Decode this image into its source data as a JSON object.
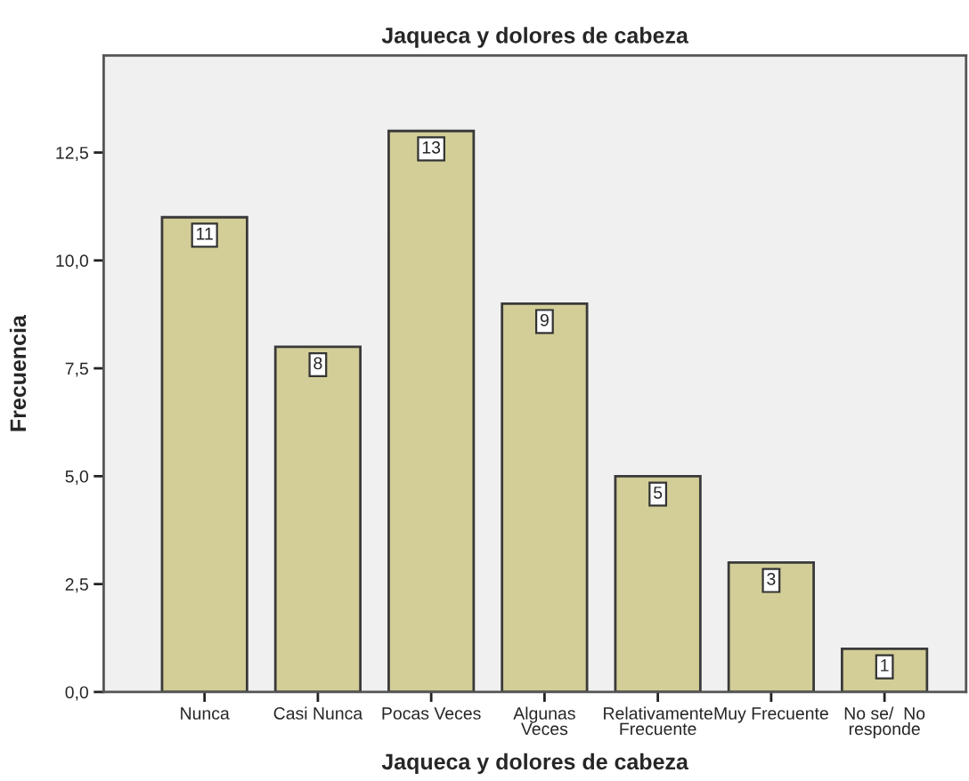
{
  "chart_data": {
    "type": "bar",
    "title": "Jaqueca y dolores de cabeza",
    "xlabel": "Jaqueca y dolores de cabeza",
    "ylabel": "Frecuencia",
    "categories": [
      "Nunca",
      "Casi Nunca",
      "Pocas Veces",
      "Algunas\nVeces",
      "Relativamente\nFrecuente",
      "Muy Frecuente",
      "No se/  No\nresponde"
    ],
    "values": [
      11,
      8,
      13,
      9,
      5,
      3,
      1
    ],
    "color": "#d3ce97",
    "ylim": [
      0,
      14.75
    ],
    "yticks": [
      {
        "value": 0,
        "label": "0,0"
      },
      {
        "value": 2.5,
        "label": "2,5"
      },
      {
        "value": 5,
        "label": "5,0"
      },
      {
        "value": 7.5,
        "label": "7,5"
      },
      {
        "value": 10,
        "label": "10,0"
      },
      {
        "value": 12.5,
        "label": "12,5"
      }
    ],
    "data_labels": true,
    "grid": false,
    "legend": false
  }
}
